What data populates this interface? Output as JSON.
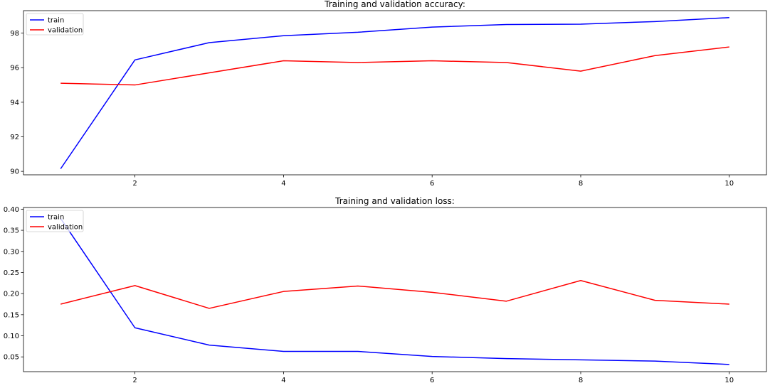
{
  "chart_data": [
    {
      "type": "line",
      "title": "Training and validation accuracy:",
      "x": [
        1,
        2,
        3,
        4,
        5,
        6,
        7,
        8,
        9,
        10
      ],
      "series": [
        {
          "name": "train",
          "color": "#0000ff",
          "values": [
            90.15,
            96.45,
            97.45,
            97.85,
            98.05,
            98.35,
            98.5,
            98.52,
            98.67,
            98.9
          ]
        },
        {
          "name": "validation",
          "color": "#ff0000",
          "values": [
            95.1,
            95.0,
            95.7,
            96.4,
            96.3,
            96.4,
            96.3,
            95.8,
            96.7,
            97.2
          ]
        }
      ],
      "xlim": [
        0.5,
        10.5
      ],
      "ylim": [
        89.8,
        99.3
      ],
      "xticks": [
        2,
        4,
        6,
        8,
        10
      ],
      "xtick_labels": [
        "2",
        "4",
        "6",
        "8",
        "10"
      ],
      "yticks": [
        90,
        92,
        94,
        96,
        98
      ],
      "ytick_labels": [
        "90",
        "92",
        "94",
        "96",
        "98"
      ],
      "xlabel": "",
      "ylabel": "",
      "grid": false,
      "legend_position": "top-left"
    },
    {
      "type": "line",
      "title": "Training and validation loss:",
      "x": [
        1,
        2,
        3,
        4,
        5,
        6,
        7,
        8,
        9,
        10
      ],
      "series": [
        {
          "name": "train",
          "color": "#0000ff",
          "values": [
            0.378,
            0.119,
            0.078,
            0.063,
            0.063,
            0.051,
            0.046,
            0.043,
            0.04,
            0.032
          ]
        },
        {
          "name": "validation",
          "color": "#ff0000",
          "values": [
            0.175,
            0.219,
            0.165,
            0.205,
            0.218,
            0.203,
            0.182,
            0.231,
            0.184,
            0.175
          ]
        }
      ],
      "xlim": [
        0.5,
        10.5
      ],
      "ylim": [
        0.015,
        0.404
      ],
      "xticks": [
        2,
        4,
        6,
        8,
        10
      ],
      "xtick_labels": [
        "2",
        "4",
        "6",
        "8",
        "10"
      ],
      "yticks": [
        0.05,
        0.1,
        0.15,
        0.2,
        0.25,
        0.3,
        0.35,
        0.4
      ],
      "ytick_labels": [
        "0.05",
        "0.10",
        "0.15",
        "0.20",
        "0.25",
        "0.30",
        "0.35",
        "0.40"
      ],
      "xlabel": "",
      "ylabel": "",
      "grid": false,
      "legend_position": "top-left"
    }
  ]
}
